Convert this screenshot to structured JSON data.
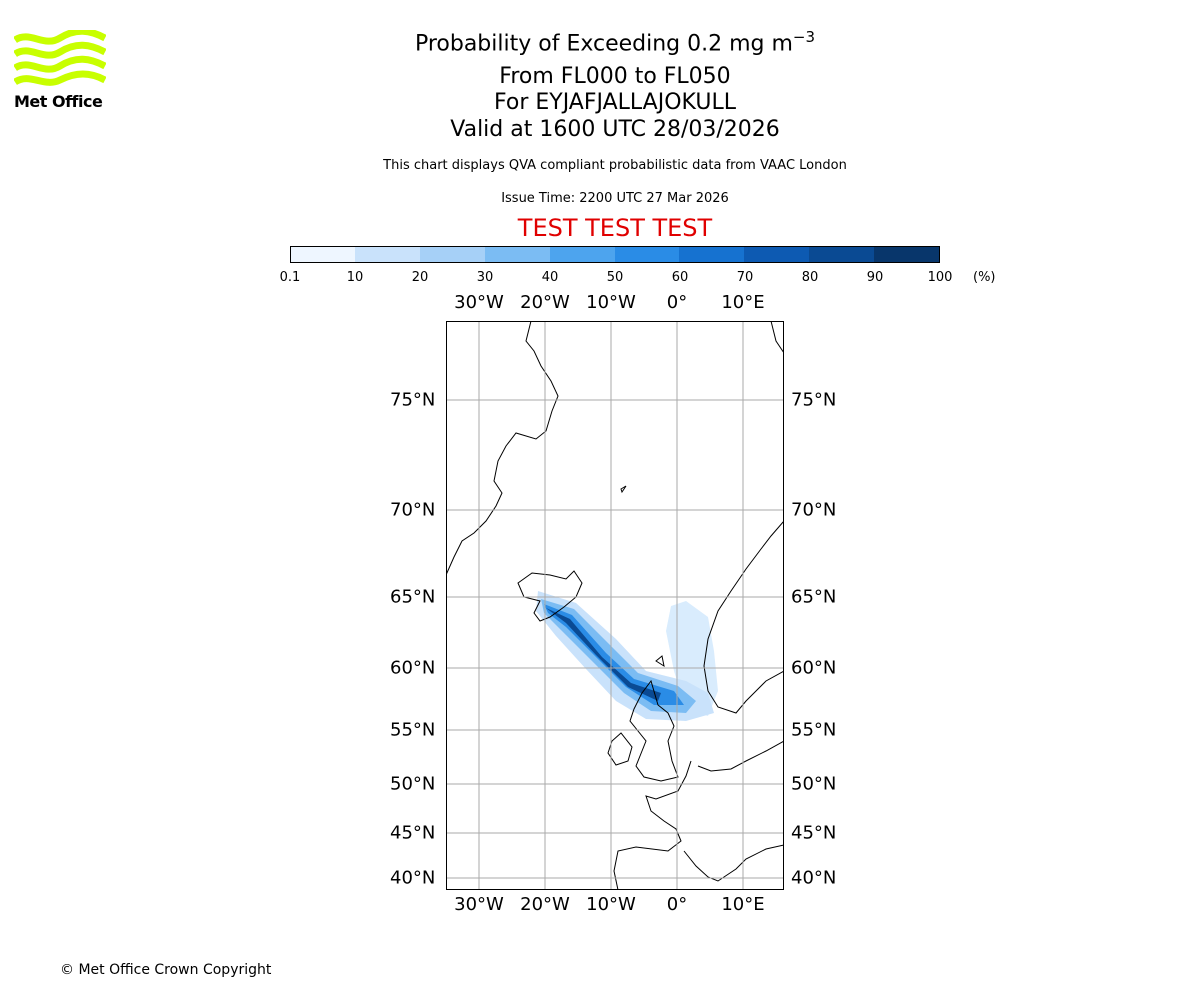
{
  "logo": {
    "text": "Met Office",
    "color": "#c8ff00"
  },
  "title": {
    "line1_prefix": "Probability of Exceeding 0.2 mg m",
    "line1_superscript": "−3",
    "line2": "From FL000 to FL050",
    "line3": "For EYJAFJALLAJOKULL",
    "line4": "Valid at 1600 UTC 28/03/2026"
  },
  "notes": {
    "description": "This chart displays QVA compliant probabilistic data from VAAC London",
    "issue_time": "Issue Time: 2200 UTC 27 Mar 2026"
  },
  "test_banner": {
    "text": "TEST TEST TEST",
    "color": "#e00000"
  },
  "colorbar": {
    "ticks": [
      "0.1",
      "10",
      "20",
      "30",
      "40",
      "50",
      "60",
      "70",
      "80",
      "90",
      "100"
    ],
    "unit": "(%)",
    "colors": [
      "#eef6ff",
      "#c9e2fb",
      "#a6d0f7",
      "#7bbcf3",
      "#4da4ee",
      "#2a8ce6",
      "#1672d0",
      "#0d5ab2",
      "#0a4a93",
      "#08366b"
    ]
  },
  "axes": {
    "lon_ticks_top": [
      "30°W",
      "20°W",
      "10°W",
      "0°",
      "10°E"
    ],
    "lon_ticks_bottom": [
      "30°W",
      "20°W",
      "10°W",
      "0°",
      "10°E"
    ],
    "lat_ticks_left": [
      "75°N",
      "70°N",
      "65°N",
      "60°N",
      "55°N",
      "50°N",
      "45°N",
      "40°N"
    ],
    "lat_ticks_right": [
      "75°N",
      "70°N",
      "65°N",
      "60°N",
      "55°N",
      "50°N",
      "45°N",
      "40°N"
    ]
  },
  "footer": {
    "copyright": "© Met Office Crown Copyright"
  }
}
